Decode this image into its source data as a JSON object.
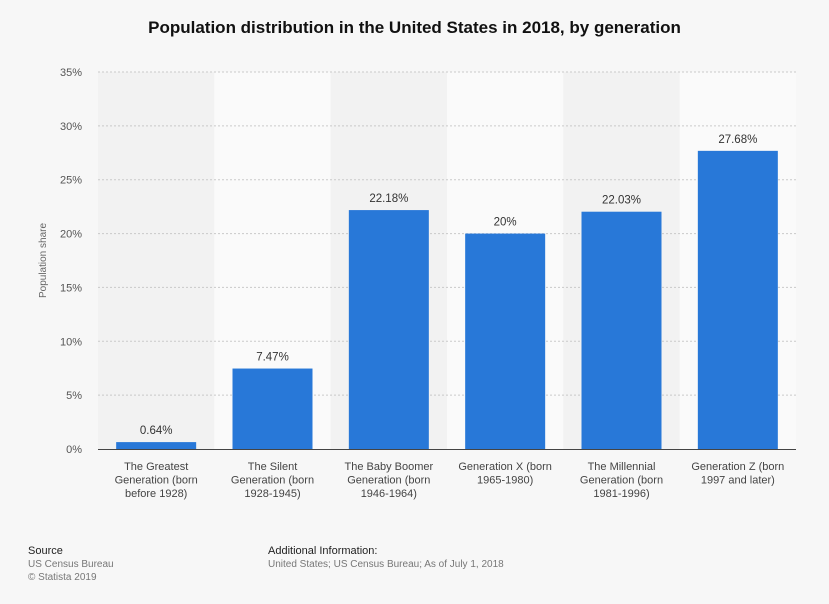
{
  "title": "Population distribution in the United States in 2018, by generation",
  "chart_data": {
    "type": "bar",
    "categories": [
      [
        "The Greatest",
        "Generation (born",
        "before 1928)"
      ],
      [
        "The Silent",
        "Generation (born",
        "1928-1945)"
      ],
      [
        "The Baby Boomer",
        "Generation (born",
        "1946-1964)"
      ],
      [
        "Generation X (born",
        "1965-1980)"
      ],
      [
        "The Millennial",
        "Generation (born",
        "1981-1996)"
      ],
      [
        "Generation Z (born",
        "1997 and later)"
      ]
    ],
    "values": [
      0.64,
      7.47,
      22.18,
      20,
      22.03,
      27.68
    ],
    "value_labels": [
      "0.64%",
      "7.47%",
      "22.18%",
      "20%",
      "22.03%",
      "27.68%"
    ],
    "ylabel": "Population share",
    "ylim": [
      0,
      35
    ],
    "yticks": [
      0,
      5,
      10,
      15,
      20,
      25,
      30,
      35
    ],
    "ytick_labels": [
      "0%",
      "5%",
      "10%",
      "15%",
      "20%",
      "25%",
      "30%",
      "35%"
    ],
    "bar_color": "#2878d8",
    "grid": true
  },
  "footer": {
    "source_heading": "Source",
    "source_lines": [
      "US Census Bureau",
      "© Statista 2019"
    ],
    "info_heading": "Additional Information:",
    "info_text": "United States; US Census Bureau; As of July 1, 2018"
  }
}
